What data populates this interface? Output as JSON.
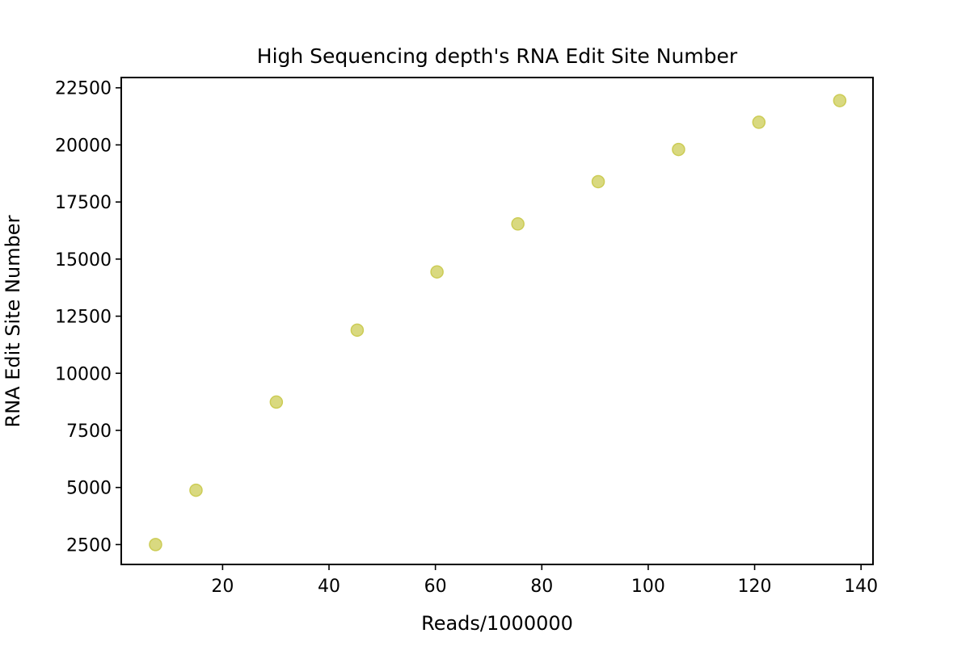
{
  "chart_data": {
    "type": "scatter",
    "title": "High Sequencing depth's RNA Edit Site Number",
    "xlabel": "Reads/1000000",
    "ylabel": "RNA Edit Site Number",
    "xlim": [
      0.95,
      142.25
    ],
    "ylim": [
      1630,
      22950
    ],
    "xticks": [
      20,
      40,
      60,
      80,
      100,
      120,
      140
    ],
    "yticks": [
      2500,
      5000,
      7500,
      10000,
      12500,
      15000,
      17500,
      20000,
      22500
    ],
    "grid": false,
    "legend": null,
    "marker_color": "#cccc55",
    "points": [
      {
        "x": 7.4,
        "y": 2500
      },
      {
        "x": 15.0,
        "y": 4880
      },
      {
        "x": 30.1,
        "y": 8740
      },
      {
        "x": 45.3,
        "y": 11890
      },
      {
        "x": 60.3,
        "y": 14440
      },
      {
        "x": 75.5,
        "y": 16540
      },
      {
        "x": 90.6,
        "y": 18390
      },
      {
        "x": 105.7,
        "y": 19800
      },
      {
        "x": 120.8,
        "y": 20990
      },
      {
        "x": 136.0,
        "y": 21940
      }
    ]
  }
}
